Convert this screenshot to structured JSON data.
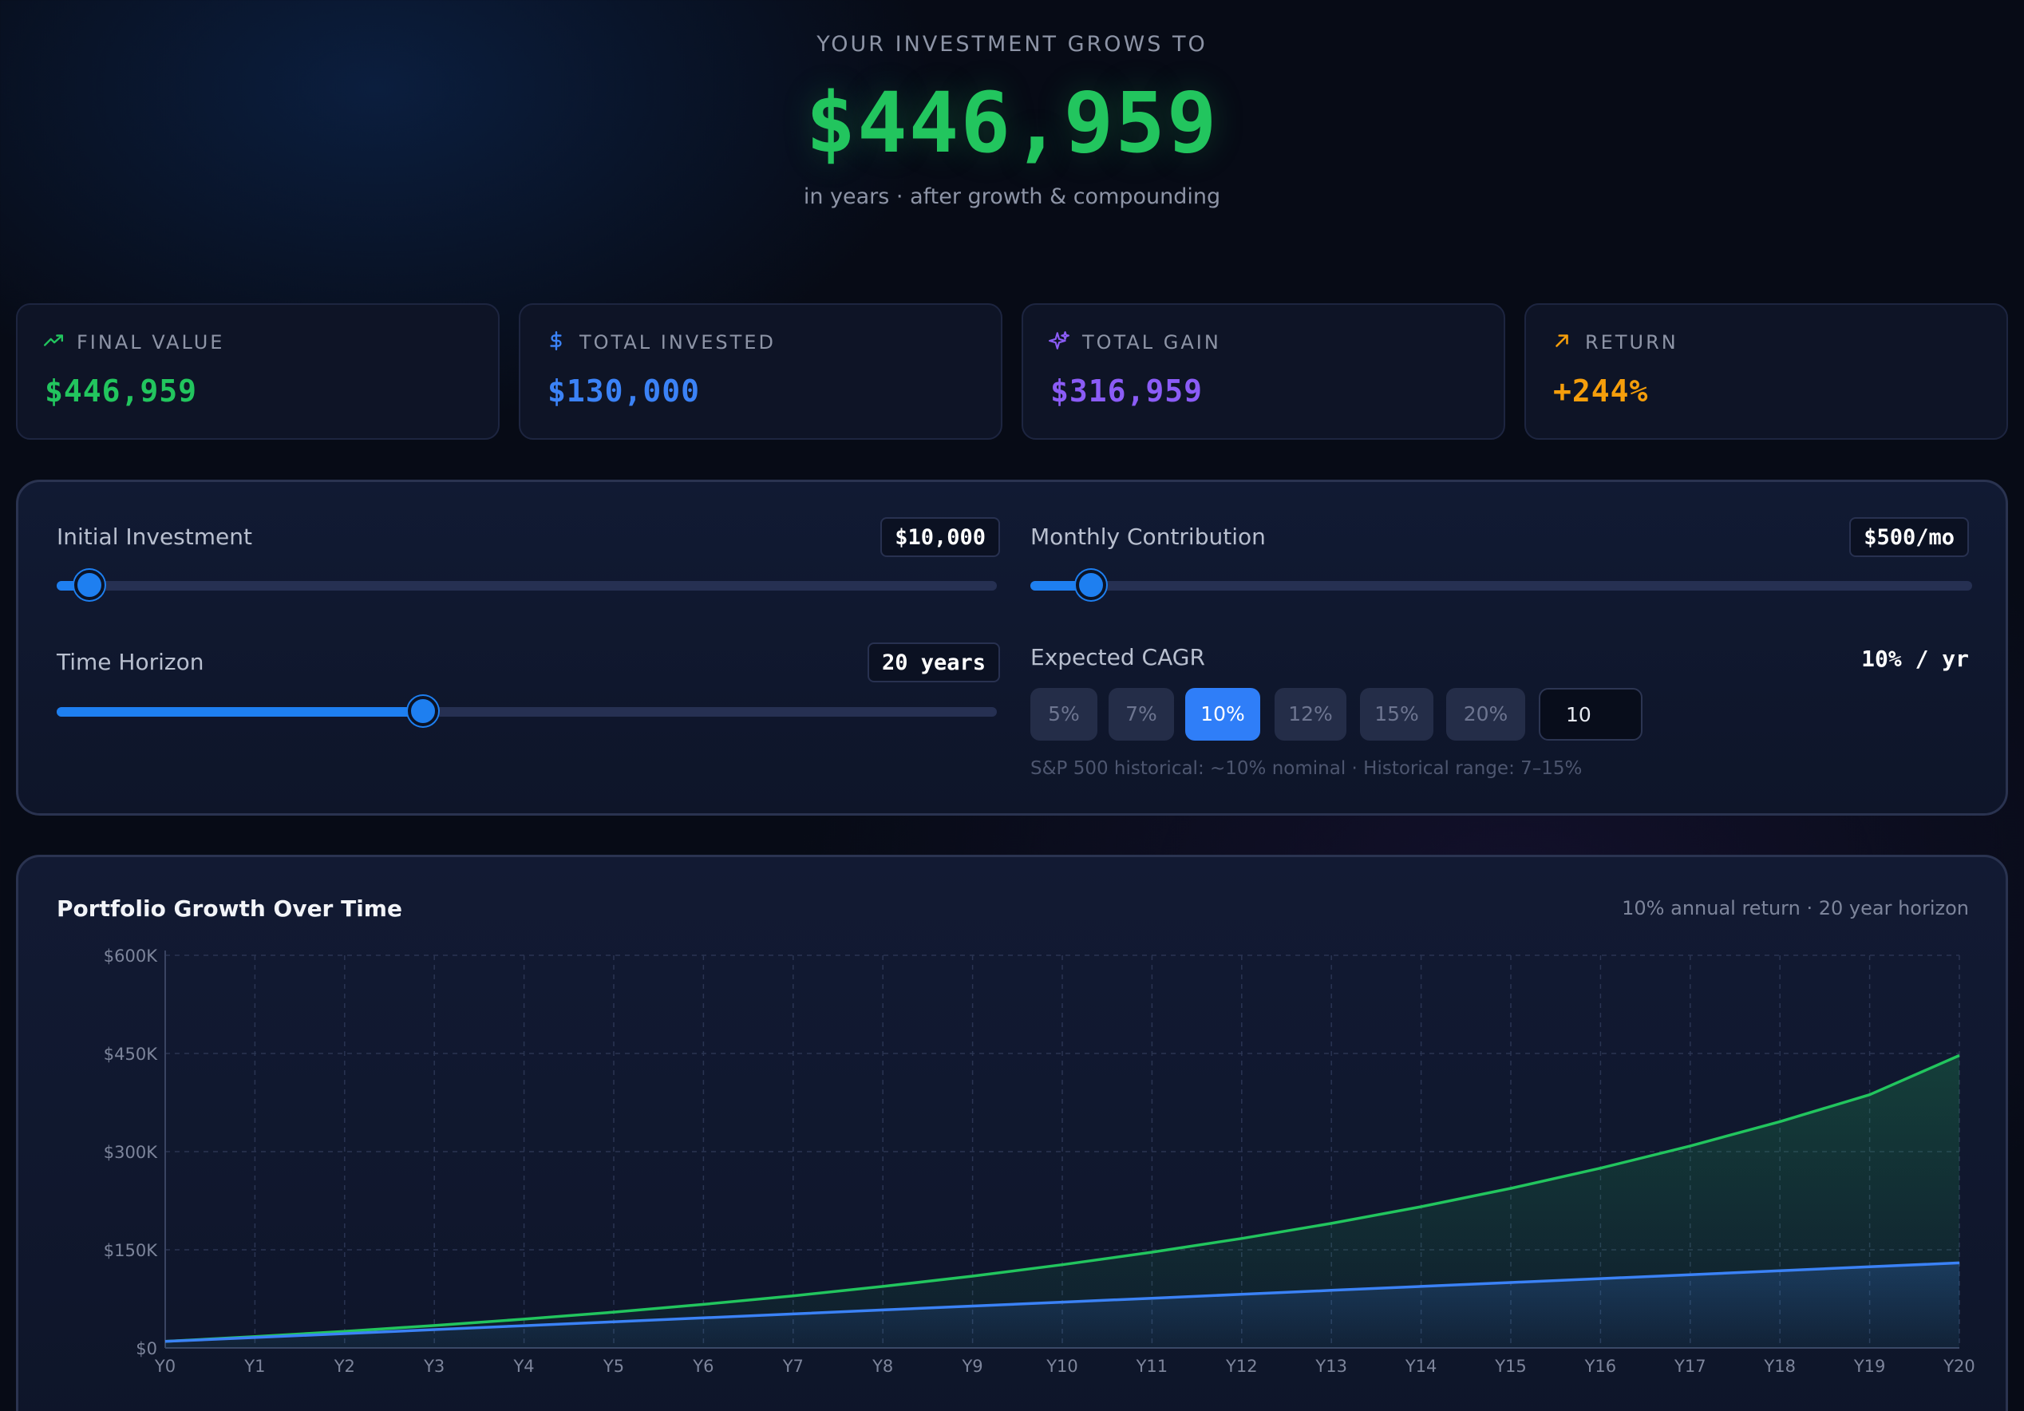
{
  "hero": {
    "kicker": "YOUR INVESTMENT GROWS TO",
    "value": "$446,959",
    "subtitle": "in years · after growth & compounding"
  },
  "stats": [
    {
      "label": "FINAL VALUE",
      "value": "$446,959",
      "color": "#22c55e",
      "icon": "trending-up-icon"
    },
    {
      "label": "TOTAL INVESTED",
      "value": "$130,000",
      "color": "#3b82f6",
      "icon": "dollar-icon"
    },
    {
      "label": "TOTAL GAIN",
      "value": "$316,959",
      "color": "#8b5cf6",
      "icon": "sparkles-icon"
    },
    {
      "label": "RETURN",
      "value": "+244%",
      "color": "#f59e0b",
      "icon": "arrow-up-right-icon"
    }
  ],
  "controls": {
    "initial": {
      "label": "Initial Investment",
      "value": "$10,000",
      "fraction": 0.035
    },
    "monthly": {
      "label": "Monthly Contribution",
      "value": "$500/mo",
      "fraction": 0.064
    },
    "horizon": {
      "label": "Time Horizon",
      "value": "20 years",
      "fraction": 0.39
    },
    "cagr": {
      "label": "Expected CAGR",
      "value": "10% / yr",
      "options": [
        "5%",
        "7%",
        "10%",
        "12%",
        "15%",
        "20%"
      ],
      "selected": "10%",
      "custom_value": "10",
      "hint": "S&P 500 historical: ~10% nominal · Historical range: 7–15%"
    }
  },
  "chart": {
    "title": "Portfolio Growth Over Time",
    "meta": "10% annual return · 20 year horizon"
  },
  "chart_data": {
    "type": "area",
    "categories": [
      "Y0",
      "Y1",
      "Y2",
      "Y3",
      "Y4",
      "Y5",
      "Y6",
      "Y7",
      "Y8",
      "Y9",
      "Y10",
      "Y11",
      "Y12",
      "Y13",
      "Y14",
      "Y15",
      "Y16",
      "Y17",
      "Y18",
      "Y19",
      "Y20"
    ],
    "y_ticks": [
      "$0",
      "$150K",
      "$300K",
      "$450K",
      "$600K"
    ],
    "ylim": [
      0,
      600000
    ],
    "grid": true,
    "series": [
      {
        "values": [
          10000,
          17300,
          25400,
          34300,
          44000,
          54800,
          66600,
          79600,
          94000,
          109800,
          127200,
          146300,
          167300,
          190400,
          215900,
          243900,
          274700,
          308600,
          345900,
          386900,
          446959
        ],
        "color": "#22c55e"
      },
      {
        "values": [
          10000,
          16000,
          22000,
          28000,
          34000,
          40000,
          46000,
          52000,
          58000,
          64000,
          70000,
          76000,
          82000,
          88000,
          94000,
          100000,
          106000,
          112000,
          118000,
          124000,
          130000
        ],
        "color": "#3b82f6"
      }
    ]
  }
}
